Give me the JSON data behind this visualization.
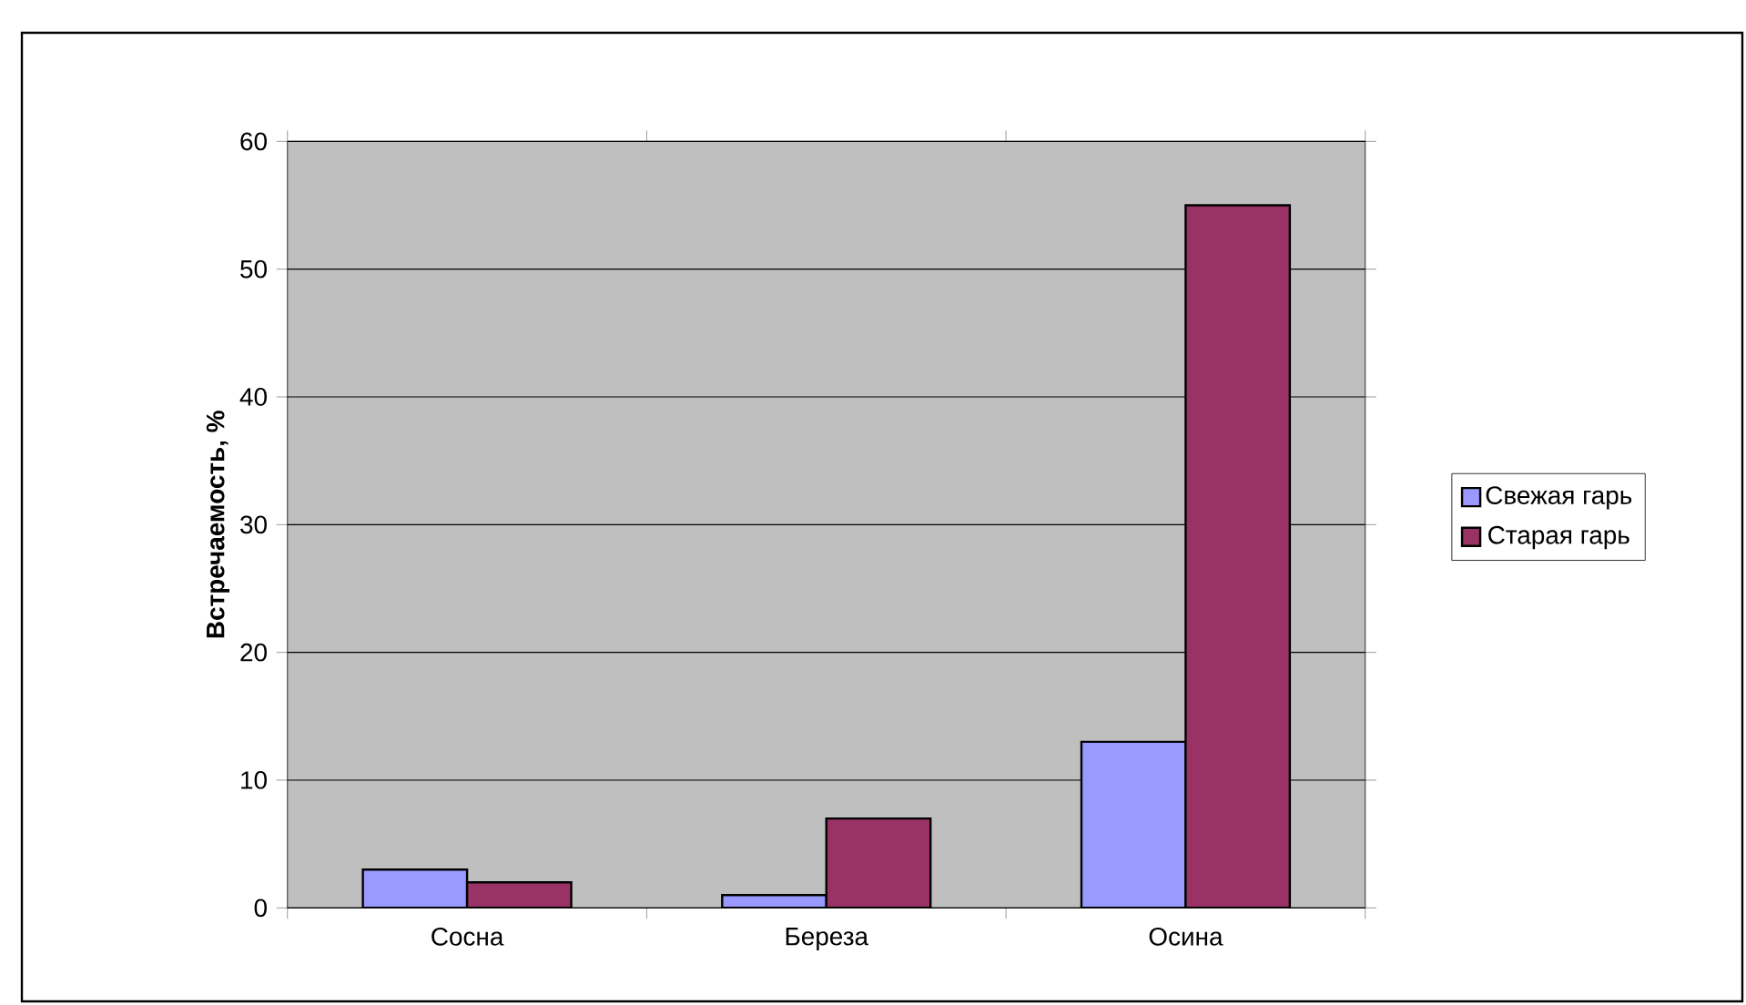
{
  "chart_data": {
    "type": "bar",
    "ylabel": "Встречаемость, %",
    "categories": [
      "Сосна",
      "Береза",
      "Осина"
    ],
    "series": [
      {
        "name": "Свежая гарь",
        "color": "#9999ff",
        "values": [
          3,
          1,
          13
        ]
      },
      {
        "name": "Старая гарь",
        "color": "#993366",
        "values": [
          2,
          7,
          55
        ]
      }
    ],
    "ylim": [
      0,
      60
    ],
    "yticks": [
      0,
      10,
      20,
      30,
      40,
      50,
      60
    ],
    "grid": "y",
    "legend": "right"
  }
}
